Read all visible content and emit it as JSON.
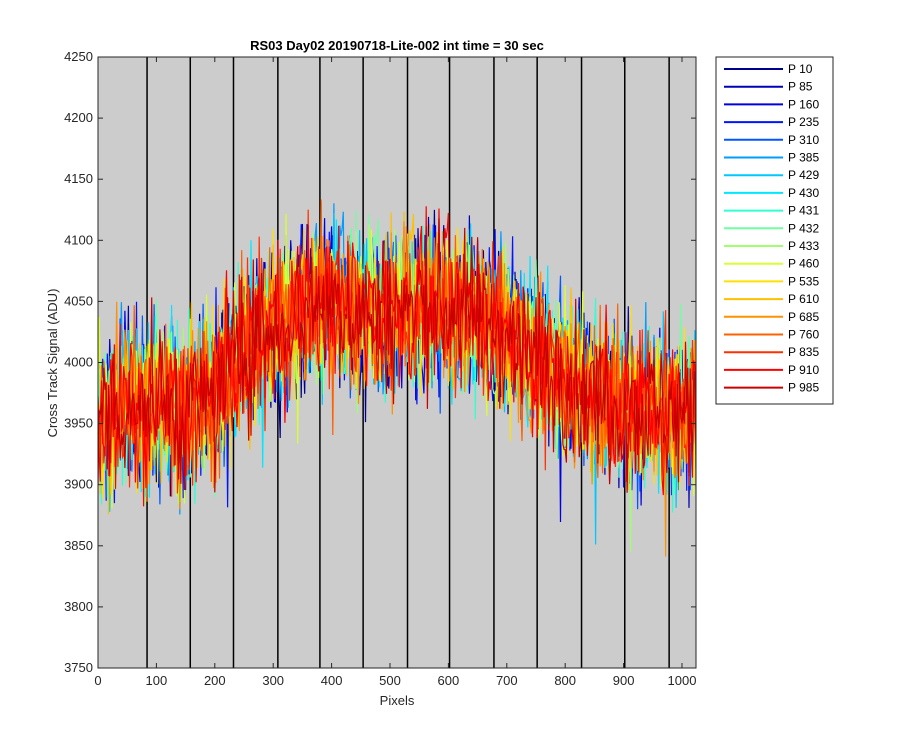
{
  "chart_data": {
    "type": "line",
    "title": "RS03 Day02 20190718-Lite-002 int time = 30 sec",
    "xlabel": "Pixels",
    "ylabel": "Cross Track Signal (ADU)",
    "xlim": [
      0,
      1024
    ],
    "ylim": [
      3750,
      4250
    ],
    "xticks": [
      0,
      100,
      200,
      300,
      400,
      500,
      600,
      700,
      800,
      900,
      1000
    ],
    "yticks": [
      3750,
      3800,
      3850,
      3900,
      3950,
      4000,
      4050,
      4100,
      4150,
      4200,
      4250
    ],
    "x_tick_labels": [
      "0",
      "100",
      "200",
      "300",
      "400",
      "500",
      "600",
      "700",
      "800",
      "900",
      "1000"
    ],
    "y_tick_labels": [
      "3750",
      "3800",
      "3850",
      "3900",
      "3950",
      "4000",
      "4050",
      "4100",
      "4150",
      "4200",
      "4250"
    ],
    "background_color": "#cccccc",
    "vertical_markers": [
      84,
      158,
      232,
      308,
      380,
      454,
      530,
      602,
      678,
      752,
      828,
      902,
      978
    ],
    "legend_position": "outside-right",
    "profile": {
      "x": [
        0,
        50,
        100,
        150,
        200,
        250,
        300,
        350,
        400,
        450,
        500,
        550,
        600,
        650,
        700,
        750,
        800,
        850,
        900,
        950,
        1000,
        1024
      ],
      "y": [
        3955,
        3965,
        3965,
        3960,
        3975,
        4010,
        4030,
        4045,
        4050,
        4040,
        4040,
        4045,
        4045,
        4040,
        4025,
        4005,
        3985,
        3970,
        3965,
        3960,
        3960,
        3958
      ]
    },
    "series": [
      {
        "name": "P 10",
        "color": "#00008f"
      },
      {
        "name": "P 85",
        "color": "#0000b8"
      },
      {
        "name": "P 160",
        "color": "#0000e0"
      },
      {
        "name": "P 235",
        "color": "#0014ff"
      },
      {
        "name": "P 310",
        "color": "#0057ff"
      },
      {
        "name": "P 385",
        "color": "#009cff"
      },
      {
        "name": "P 429",
        "color": "#00c8ff"
      },
      {
        "name": "P 430",
        "color": "#00e8ff"
      },
      {
        "name": "P 431",
        "color": "#30ffd0"
      },
      {
        "name": "P 432",
        "color": "#70ffa0"
      },
      {
        "name": "P 433",
        "color": "#a0ff70"
      },
      {
        "name": "P 460",
        "color": "#d8ff30"
      },
      {
        "name": "P 535",
        "color": "#ffe000"
      },
      {
        "name": "P 610",
        "color": "#ffc000"
      },
      {
        "name": "P 685",
        "color": "#ff9000"
      },
      {
        "name": "P 760",
        "color": "#ff6000"
      },
      {
        "name": "P 835",
        "color": "#ff3000"
      },
      {
        "name": "P 910",
        "color": "#ff0000"
      },
      {
        "name": "P 985",
        "color": "#c80000"
      }
    ]
  }
}
